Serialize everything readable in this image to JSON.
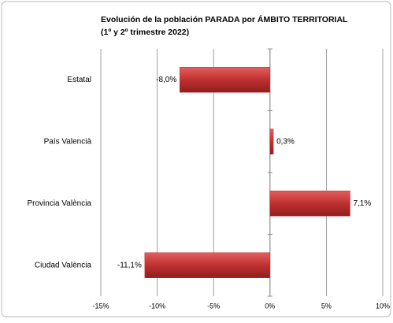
{
  "chart_data": {
    "type": "hbar",
    "title": "Evolución de la población PARADA por ÁMBITO TERRITORIAL",
    "subtitle": "(1º y 2º trimestre 2022)",
    "categories": [
      "Estatal",
      "País Valencià",
      "Provincia València",
      "Ciudad València"
    ],
    "values": [
      -8.0,
      0.3,
      7.1,
      -11.1
    ],
    "value_labels": [
      "-8,0%",
      "0,3%",
      "7,1%",
      "-11,1%"
    ],
    "color": "#c0302f",
    "xlim": [
      -15,
      10
    ],
    "xticks": [
      {
        "value": -15,
        "label": "-15%"
      },
      {
        "value": -10,
        "label": "-10%"
      },
      {
        "value": -5,
        "label": "-5%"
      },
      {
        "value": 0,
        "label": "0%"
      },
      {
        "value": 5,
        "label": "5%"
      },
      {
        "value": 10,
        "label": "10%"
      }
    ],
    "grid": true
  }
}
